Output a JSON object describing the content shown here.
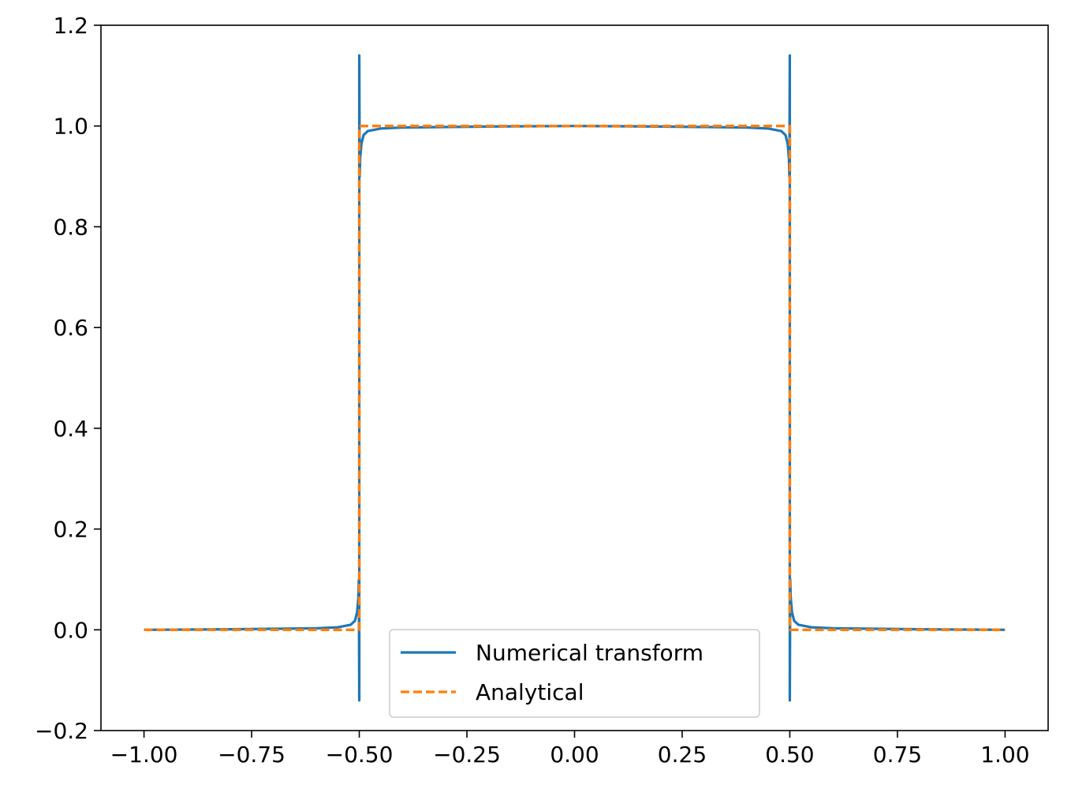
{
  "chart_data": {
    "type": "line",
    "title": "",
    "xlabel": "",
    "ylabel": "",
    "xlim": [
      -1.1,
      1.1
    ],
    "ylim": [
      -0.2,
      1.2
    ],
    "x_ticks": [
      -1.0,
      -0.75,
      -0.5,
      -0.25,
      0.0,
      0.25,
      0.5,
      0.75,
      1.0
    ],
    "x_tick_labels": [
      "−1.00",
      "−0.75",
      "−0.50",
      "−0.25",
      "0.00",
      "0.25",
      "0.50",
      "0.75",
      "1.00"
    ],
    "y_ticks": [
      -0.2,
      0.0,
      0.2,
      0.4,
      0.6,
      0.8,
      1.0,
      1.2
    ],
    "y_tick_labels": [
      "−0.2",
      "0.0",
      "0.2",
      "0.4",
      "0.6",
      "0.8",
      "1.0",
      "1.2"
    ],
    "grid": false,
    "legend_position": "lower center",
    "series": [
      {
        "name": "Numerical transform",
        "color": "#1f77b4",
        "style": "solid",
        "x": [
          -1.0,
          -0.8,
          -0.6,
          -0.55,
          -0.52,
          -0.51,
          -0.505,
          -0.502,
          -0.501,
          -0.5,
          -0.5,
          -0.5,
          -0.499,
          -0.498,
          -0.495,
          -0.49,
          -0.48,
          -0.45,
          -0.4,
          -0.2,
          0.0,
          0.2,
          0.4,
          0.45,
          0.48,
          0.49,
          0.495,
          0.498,
          0.499,
          0.5,
          0.5,
          0.5,
          0.501,
          0.502,
          0.505,
          0.51,
          0.52,
          0.55,
          0.6,
          0.8,
          1.0
        ],
        "y": [
          0.0,
          0.001,
          0.003,
          0.005,
          0.01,
          0.018,
          0.035,
          0.065,
          0.1,
          -0.14,
          0.5,
          1.14,
          0.9,
          0.935,
          0.965,
          0.982,
          0.99,
          0.995,
          0.997,
          0.999,
          1.0,
          0.999,
          0.997,
          0.995,
          0.99,
          0.982,
          0.965,
          0.935,
          0.9,
          1.14,
          0.5,
          -0.14,
          0.1,
          0.065,
          0.035,
          0.018,
          0.01,
          0.005,
          0.003,
          0.001,
          0.0
        ]
      },
      {
        "name": "Analytical",
        "color": "#ff7f0e",
        "style": "dashed",
        "x": [
          -1.0,
          -0.5,
          -0.5,
          0.5,
          0.5,
          1.0
        ],
        "y": [
          0.0,
          0.0,
          1.0,
          1.0,
          0.0,
          0.0
        ]
      }
    ]
  }
}
